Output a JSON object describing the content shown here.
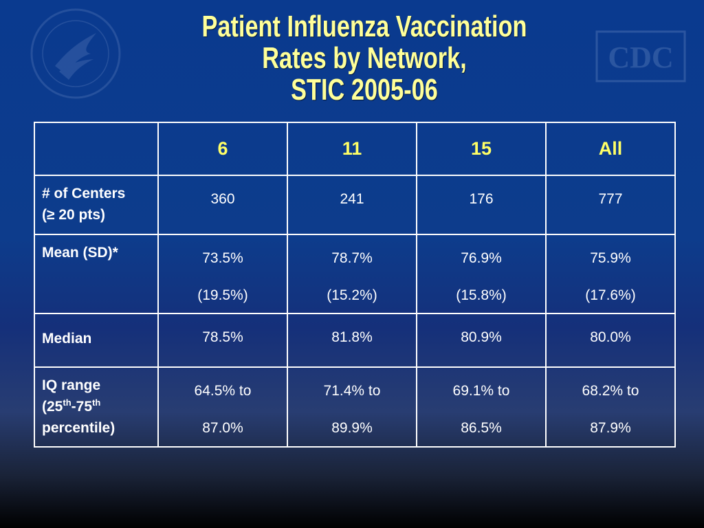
{
  "title_lines": [
    "Patient Influenza Vaccination",
    "Rates by Network,",
    "STIC 2005-06"
  ],
  "logos": {
    "left": "hhs-eagle-seal",
    "right_text": "CDC"
  },
  "table": {
    "headers": [
      "",
      "6",
      "11",
      "15",
      "All"
    ],
    "rows": [
      {
        "label_lines": [
          "# of Centers",
          "(≥ 20 pts)"
        ],
        "cells": [
          [
            "360"
          ],
          [
            "241"
          ],
          [
            "176"
          ],
          [
            "777"
          ]
        ]
      },
      {
        "label_lines": [
          "Mean (SD)*"
        ],
        "cells": [
          [
            "73.5%",
            "(19.5%)"
          ],
          [
            "78.7%",
            "(15.2%)"
          ],
          [
            "76.9%",
            "(15.8%)"
          ],
          [
            "75.9%",
            "(17.6%)"
          ]
        ]
      },
      {
        "label_lines": [
          "Median"
        ],
        "cells": [
          [
            "78.5%"
          ],
          [
            "81.8%"
          ],
          [
            "80.9%"
          ],
          [
            "80.0%"
          ]
        ]
      },
      {
        "label_lines": [
          "IQ range",
          "(25",
          "th",
          "-75",
          "th",
          "percentile)"
        ],
        "cells": [
          [
            "64.5% to",
            "87.0%"
          ],
          [
            "71.4% to",
            "89.9%"
          ],
          [
            "69.1% to",
            "86.5%"
          ],
          [
            "68.2% to",
            "87.9%"
          ]
        ]
      }
    ]
  },
  "colors": {
    "title": "#ffff99",
    "header_text": "#ffff66",
    "grid": "#ffffff",
    "background": "#0d3c8c"
  }
}
